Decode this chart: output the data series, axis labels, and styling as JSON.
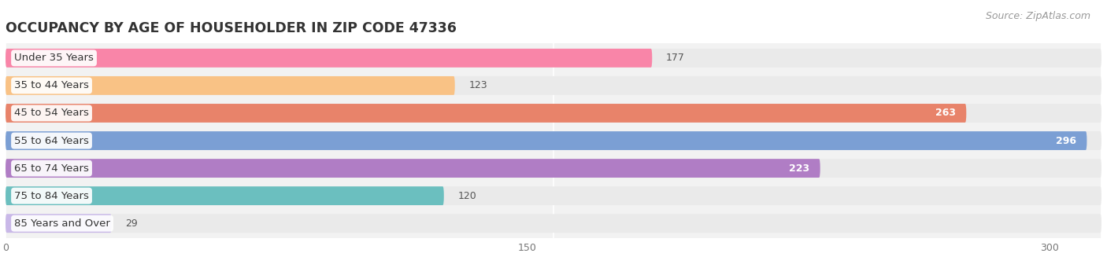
{
  "title": "OCCUPANCY BY AGE OF HOUSEHOLDER IN ZIP CODE 47336",
  "source": "Source: ZipAtlas.com",
  "categories": [
    "Under 35 Years",
    "35 to 44 Years",
    "45 to 54 Years",
    "55 to 64 Years",
    "65 to 74 Years",
    "75 to 84 Years",
    "85 Years and Over"
  ],
  "values": [
    177,
    123,
    263,
    296,
    223,
    120,
    29
  ],
  "bar_colors": [
    "#F985A8",
    "#F9C285",
    "#E8836A",
    "#7B9FD4",
    "#B07DC5",
    "#6BBFBF",
    "#C9B8E8"
  ],
  "value_inside": [
    false,
    false,
    true,
    true,
    true,
    false,
    false
  ],
  "bar_bg_color": "#EAEAEA",
  "xlim": [
    0,
    315
  ],
  "xticks": [
    0,
    150,
    300
  ],
  "title_fontsize": 12.5,
  "label_fontsize": 9.5,
  "value_fontsize": 9,
  "source_fontsize": 9,
  "background_color": "#FFFFFF",
  "plot_bg_color": "#F2F2F2"
}
